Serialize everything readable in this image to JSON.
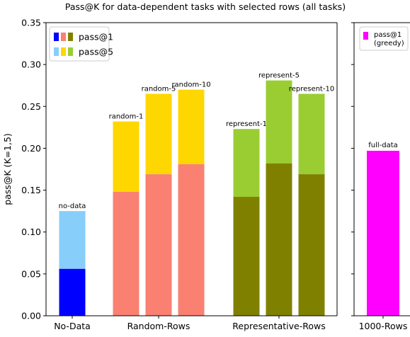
{
  "chart_data": {
    "type": "bar",
    "title": "Pass@K for data-dependent tasks with selected rows (all tasks)",
    "ylabel": "pass@K (K=1,5)",
    "ylim": [
      0,
      0.35
    ],
    "yticks": [
      "0.00",
      "0.05",
      "0.10",
      "0.15",
      "0.20",
      "0.25",
      "0.30",
      "0.35"
    ],
    "groups": [
      {
        "name": "No-Data",
        "bars": [
          {
            "label": "no-data",
            "pass1": 0.056,
            "pass5": 0.125,
            "color1": "#0000ff",
            "color5": "#87cefa"
          }
        ]
      },
      {
        "name": "Random-Rows",
        "bars": [
          {
            "label": "random-1",
            "pass1": 0.148,
            "pass5": 0.232,
            "color1": "#fa8072",
            "color5": "#ffd700"
          },
          {
            "label": "random-5",
            "pass1": 0.169,
            "pass5": 0.265,
            "color1": "#fa8072",
            "color5": "#ffd700"
          },
          {
            "label": "random-10",
            "pass1": 0.181,
            "pass5": 0.27,
            "color1": "#fa8072",
            "color5": "#ffd700"
          }
        ]
      },
      {
        "name": "Representative-Rows",
        "bars": [
          {
            "label": "represent-1",
            "pass1": 0.142,
            "pass5": 0.223,
            "color1": "#808000",
            "color5": "#9acd32"
          },
          {
            "label": "represent-5",
            "pass1": 0.182,
            "pass5": 0.281,
            "color1": "#808000",
            "color5": "#9acd32"
          },
          {
            "label": "represent-10",
            "pass1": 0.169,
            "pass5": 0.265,
            "color1": "#808000",
            "color5": "#9acd32"
          }
        ]
      }
    ],
    "side_panel": {
      "category": "1000-Rows",
      "bar_label": "full-data",
      "value": 0.197,
      "color": "#ff00ff",
      "legend": [
        "pass@1",
        "(greedy)"
      ]
    },
    "legend": {
      "placement": "top-left",
      "entries": [
        {
          "label": "pass@1",
          "colors": [
            "#0000ff",
            "#fa8072",
            "#808000"
          ]
        },
        {
          "label": "pass@5",
          "colors": [
            "#87cefa",
            "#ffd700",
            "#9acd32"
          ]
        }
      ]
    },
    "grid": false
  }
}
